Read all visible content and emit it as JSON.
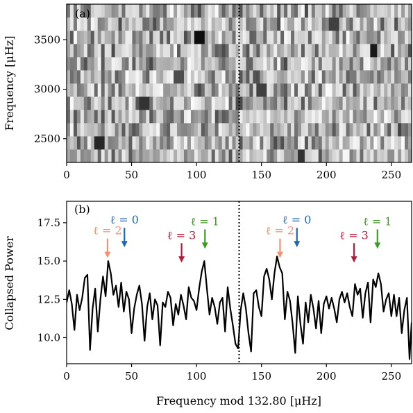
{
  "chart_data": [
    {
      "type": "heatmap",
      "panel_label": "(a)",
      "xlabel": "",
      "ylabel": "Frequency [μHz]",
      "xlim": [
        0,
        265.6
      ],
      "ylim": [
        2260,
        3860
      ],
      "xticks": [
        "0",
        "50",
        "100",
        "150",
        "200",
        "250"
      ],
      "yticks": [
        "2500",
        "3000",
        "3500"
      ],
      "xtick_values": [
        0,
        50,
        100,
        150,
        200,
        250
      ],
      "ytick_values": [
        2500,
        3000,
        3500
      ],
      "colormap": "gray_r",
      "rows": 12,
      "cols": 100,
      "row_frequencies": [
        2326,
        2459,
        2592,
        2725,
        2858,
        2990,
        3123,
        3256,
        3389,
        3522,
        3655,
        3788
      ],
      "dotted_line_x": 132.8,
      "dark_spots": [
        {
          "x": 102,
          "y": 3520,
          "level": 0.95
        },
        {
          "x": 236,
          "y": 3390,
          "level": 0.9
        },
        {
          "x": 25,
          "y": 2460,
          "level": 0.85
        },
        {
          "x": 60,
          "y": 2860,
          "level": 0.8
        },
        {
          "x": 180,
          "y": 2330,
          "level": 0.8
        },
        {
          "x": 206,
          "y": 3660,
          "level": 0.75
        },
        {
          "x": 150,
          "y": 2990,
          "level": 0.75
        },
        {
          "x": 86,
          "y": 3130,
          "level": 0.7
        }
      ]
    },
    {
      "type": "line",
      "panel_label": "(b)",
      "xlabel": "Frequency mod 132.80 [μHz]",
      "ylabel": "Collapsed Power",
      "xlim": [
        0,
        265.6
      ],
      "ylim": [
        8.3,
        18.9
      ],
      "xticks": [
        "0",
        "50",
        "100",
        "150",
        "200",
        "250"
      ],
      "yticks": [
        "10.0",
        "12.5",
        "15.0",
        "17.5"
      ],
      "xtick_values": [
        0,
        50,
        100,
        150,
        200,
        250
      ],
      "ytick_values": [
        10.0,
        12.5,
        15.0,
        17.5
      ],
      "dotted_line_x": 132.8,
      "series": [
        {
          "color": "#000000",
          "x": [
            0,
            2,
            4,
            6,
            8,
            10,
            12,
            14,
            16,
            18,
            20,
            22,
            24,
            26,
            28,
            30,
            32,
            34,
            36,
            38,
            40,
            42,
            44,
            46,
            48,
            50,
            52,
            54,
            56,
            58,
            60,
            62,
            64,
            66,
            68,
            70,
            72,
            74,
            76,
            78,
            80,
            82,
            84,
            86,
            88,
            90,
            92,
            94,
            96,
            98,
            100,
            102,
            104,
            106,
            108,
            110,
            112,
            114,
            116,
            118,
            120,
            122,
            124,
            126,
            128,
            130,
            132,
            134,
            136,
            138,
            140,
            142,
            144,
            146,
            148,
            150,
            152,
            154,
            156,
            158,
            160,
            162,
            164,
            166,
            168,
            170,
            172,
            174,
            176,
            178,
            180,
            182,
            184,
            186,
            188,
            190,
            192,
            194,
            196,
            198,
            200,
            202,
            204,
            206,
            208,
            210,
            212,
            214,
            216,
            218,
            220,
            222,
            224,
            226,
            228,
            230,
            232,
            234,
            236,
            238,
            240,
            242,
            244,
            246,
            248,
            250,
            252,
            254,
            256,
            258,
            260,
            262,
            264,
            265.6
          ],
          "y": [
            12.3,
            13.1,
            12.2,
            10.5,
            12.8,
            11.8,
            12.6,
            13.9,
            14.1,
            9.2,
            11.9,
            13.2,
            10.4,
            12.5,
            14.0,
            12.7,
            15.0,
            14.2,
            12.8,
            13.4,
            12.0,
            13.6,
            11.7,
            13.0,
            12.5,
            10.3,
            11.9,
            12.8,
            13.4,
            12.2,
            9.8,
            12.0,
            12.9,
            11.2,
            12.5,
            12.1,
            9.5,
            12.3,
            12.0,
            13.0,
            12.6,
            10.8,
            12.2,
            11.5,
            12.8,
            12.1,
            11.2,
            13.3,
            12.6,
            12.4,
            11.8,
            13.2,
            14.3,
            15.0,
            13.2,
            11.5,
            12.6,
            12.0,
            10.9,
            12.3,
            12.6,
            10.4,
            13.3,
            11.9,
            10.8,
            9.6,
            9.3,
            11.8,
            12.9,
            11.9,
            10.3,
            9.1,
            12.9,
            13.1,
            12.0,
            11.4,
            14.0,
            14.5,
            13.8,
            12.5,
            14.2,
            15.3,
            14.6,
            14.2,
            11.2,
            13.0,
            12.4,
            10.9,
            9.0,
            12.7,
            10.9,
            9.6,
            12.3,
            11.0,
            12.8,
            11.9,
            10.6,
            12.4,
            10.3,
            12.2,
            12.7,
            11.9,
            12.6,
            11.9,
            11.0,
            12.5,
            13.0,
            12.3,
            12.9,
            12.0,
            11.4,
            13.5,
            12.8,
            13.2,
            11.3,
            12.9,
            13.6,
            11.0,
            13.8,
            13.3,
            14.2,
            13.5,
            11.7,
            12.5,
            12.9,
            11.4,
            12.8,
            11.4,
            12.6,
            10.3,
            11.8,
            12.6,
            8.6,
            11.0
          ]
        }
      ],
      "annotations": [
        {
          "text": "ℓ = 2",
          "x": 31.5,
          "arrow_tip_y": 15.2,
          "color": "#f4906c"
        },
        {
          "text": "ℓ = 0",
          "x": 44.5,
          "arrow_tip_y": 15.9,
          "color": "#1f66b4"
        },
        {
          "text": "ℓ = 3",
          "x": 88.5,
          "arrow_tip_y": 14.9,
          "color": "#b8183a"
        },
        {
          "text": "ℓ = 1",
          "x": 106.5,
          "arrow_tip_y": 15.8,
          "color": "#3f9a28"
        },
        {
          "text": "ℓ = 2",
          "x": 164.3,
          "arrow_tip_y": 15.2,
          "color": "#f4906c"
        },
        {
          "text": "ℓ = 0",
          "x": 177.3,
          "arrow_tip_y": 15.9,
          "color": "#1f66b4"
        },
        {
          "text": "ℓ = 3",
          "x": 221.3,
          "arrow_tip_y": 14.9,
          "color": "#b8183a"
        },
        {
          "text": "ℓ = 1",
          "x": 239.3,
          "arrow_tip_y": 15.8,
          "color": "#3f9a28"
        }
      ]
    }
  ]
}
